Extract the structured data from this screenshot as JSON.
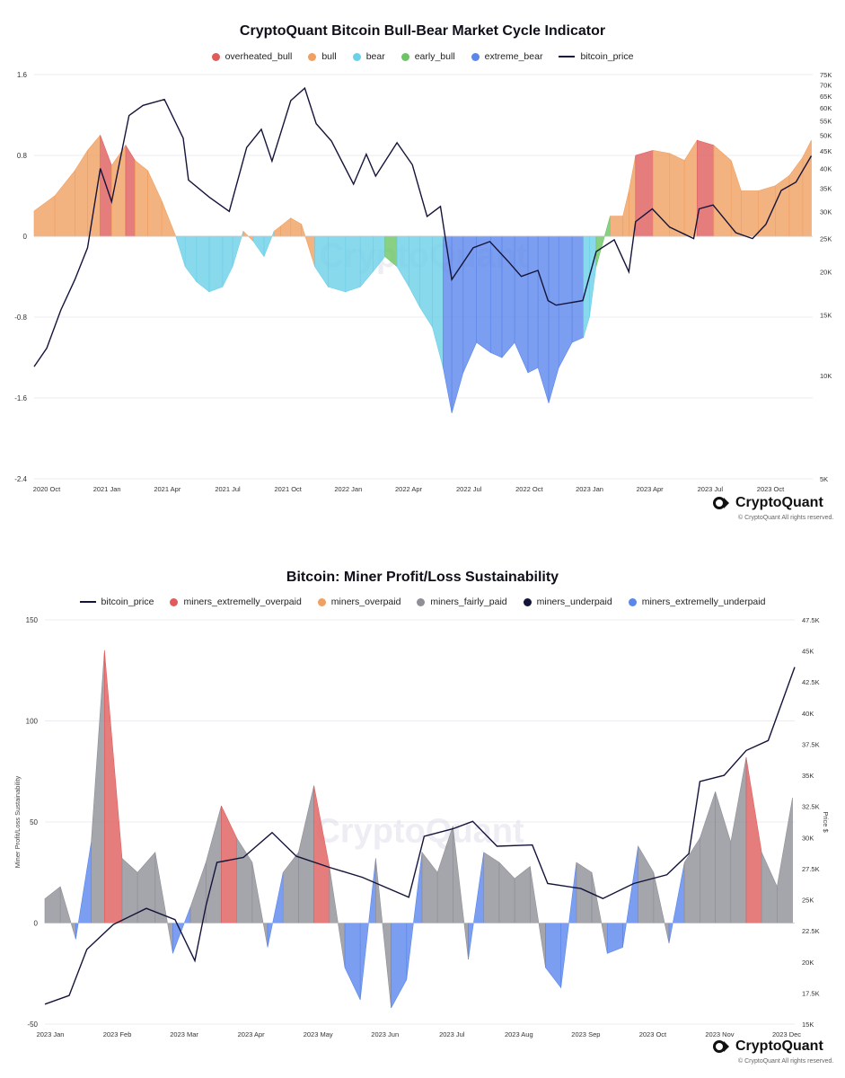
{
  "charts": [
    {
      "title": "CryptoQuant Bitcoin Bull-Bear Market Cycle Indicator",
      "legend": [
        {
          "label": "overheated_bull",
          "color": "#e05c5c",
          "kind": "dot"
        },
        {
          "label": "bull",
          "color": "#f0a060",
          "kind": "dot"
        },
        {
          "label": "bear",
          "color": "#6cd0e8",
          "kind": "dot"
        },
        {
          "label": "early_bull",
          "color": "#6cc464",
          "kind": "dot"
        },
        {
          "label": "extreme_bear",
          "color": "#5b86ec",
          "kind": "dot"
        },
        {
          "label": "bitcoin_price",
          "color": "#14143a",
          "kind": "line"
        }
      ],
      "watermark": "CryptoQuant",
      "brand": "CryptoQuant",
      "copyright": "© CryptoQuant All rights reserved."
    },
    {
      "title": "Bitcoin: Miner Profit/Loss Sustainability",
      "legend": [
        {
          "label": "bitcoin_price",
          "color": "#14143a",
          "kind": "line"
        },
        {
          "label": "miners_extremelly_overpaid",
          "color": "#e05c5c",
          "kind": "dot"
        },
        {
          "label": "miners_overpaid",
          "color": "#f0a060",
          "kind": "dot"
        },
        {
          "label": "miners_fairly_paid",
          "color": "#8f8f97",
          "kind": "dot"
        },
        {
          "label": "miners_underpaid",
          "color": "#14143a",
          "kind": "dot"
        },
        {
          "label": "miners_extremelly_underpaid",
          "color": "#5b86ec",
          "kind": "dot"
        }
      ],
      "watermark": "CryptoQuant",
      "brand": "CryptoQuant",
      "copyright": "© CryptoQuant All rights reserved."
    }
  ],
  "chart_data": [
    {
      "type": "area",
      "title": "CryptoQuant Bitcoin Bull-Bear Market Cycle Indicator",
      "x_tick_labels": [
        "2020 Oct",
        "2021 Jan",
        "2021 Apr",
        "2021 Jul",
        "2021 Oct",
        "2022 Jan",
        "2022 Apr",
        "2022 Jul",
        "2022 Oct",
        "2023 Jan",
        "2023 Apr",
        "2023 Jul",
        "2023 Oct"
      ],
      "x_range": [
        "2020-10-01",
        "2023-12-10"
      ],
      "y_left": {
        "range": [
          -2.4,
          1.6
        ],
        "ticks": [
          1.6,
          0.8,
          0,
          -0.8,
          -1.6,
          -2.4
        ],
        "tick_labels": [
          "1.6",
          "0.8",
          "0",
          "-0.8",
          "-1.6",
          "-2.4"
        ]
      },
      "y_right": {
        "scale": "log",
        "range": [
          5000,
          75000
        ],
        "ticks": [
          75000,
          70000,
          65000,
          60000,
          55000,
          50000,
          45000,
          40000,
          35000,
          30000,
          25000,
          20000,
          15000,
          10000,
          5000
        ],
        "tick_labels": [
          "75K",
          "70K",
          "65K",
          "60K",
          "55K",
          "50K",
          "45K",
          "40K",
          "35K",
          "30K",
          "25K",
          "20K",
          "15K",
          "10K",
          "5K"
        ]
      },
      "indicator": {
        "x": [
          "2020-10-01",
          "2020-11-01",
          "2020-12-01",
          "2020-12-20",
          "2021-01-08",
          "2021-01-25",
          "2021-02-15",
          "2021-03-01",
          "2021-03-20",
          "2021-04-10",
          "2021-05-01",
          "2021-05-15",
          "2021-06-01",
          "2021-06-20",
          "2021-07-10",
          "2021-07-25",
          "2021-08-10",
          "2021-08-25",
          "2021-09-10",
          "2021-09-25",
          "2021-10-05",
          "2021-10-20",
          "2021-11-05",
          "2021-11-25",
          "2021-12-15",
          "2022-01-10",
          "2022-02-01",
          "2022-02-20",
          "2022-03-10",
          "2022-03-28",
          "2022-04-15",
          "2022-05-01",
          "2022-05-20",
          "2022-06-05",
          "2022-06-18",
          "2022-07-05",
          "2022-07-25",
          "2022-08-15",
          "2022-09-01",
          "2022-09-20",
          "2022-10-10",
          "2022-10-25",
          "2022-11-10",
          "2022-11-25",
          "2022-12-15",
          "2023-01-01",
          "2023-01-10",
          "2023-01-20",
          "2023-02-10",
          "2023-03-01",
          "2023-03-10",
          "2023-03-20",
          "2023-04-15",
          "2023-05-10",
          "2023-06-01",
          "2023-06-20",
          "2023-07-15",
          "2023-08-10",
          "2023-08-25",
          "2023-09-20",
          "2023-10-15",
          "2023-11-05",
          "2023-11-25",
          "2023-12-08"
        ],
        "values": [
          0.25,
          0.4,
          0.65,
          0.85,
          1.0,
          0.7,
          0.9,
          0.75,
          0.65,
          0.35,
          0.0,
          -0.3,
          -0.45,
          -0.55,
          -0.5,
          -0.3,
          0.05,
          -0.05,
          -0.2,
          0.05,
          0.1,
          0.18,
          0.12,
          -0.3,
          -0.5,
          -0.55,
          -0.5,
          -0.35,
          -0.2,
          -0.3,
          -0.5,
          -0.7,
          -0.9,
          -1.3,
          -1.75,
          -1.35,
          -1.05,
          -1.15,
          -1.2,
          -1.05,
          -1.35,
          -1.3,
          -1.65,
          -1.3,
          -1.05,
          -1.0,
          -0.8,
          -0.3,
          0.2,
          0.2,
          0.45,
          0.8,
          0.85,
          0.82,
          0.75,
          0.95,
          0.9,
          0.75,
          0.45,
          0.45,
          0.5,
          0.6,
          0.78,
          0.95
        ],
        "regime": [
          "bull",
          "bull",
          "bull",
          "bull",
          "overheated_bull",
          "bull",
          "overheated_bull",
          "bull",
          "bull",
          "bull",
          "bear",
          "bear",
          "bear",
          "bear",
          "bear",
          "bear",
          "bull",
          "bear",
          "bear",
          "bull",
          "bull",
          "bull",
          "bull",
          "bear",
          "bear",
          "bear",
          "bear",
          "bear",
          "early_bull",
          "bear",
          "bear",
          "bear",
          "bear",
          "extreme_bear",
          "extreme_bear",
          "extreme_bear",
          "extreme_bear",
          "extreme_bear",
          "extreme_bear",
          "extreme_bear",
          "extreme_bear",
          "extreme_bear",
          "extreme_bear",
          "extreme_bear",
          "extreme_bear",
          "bear",
          "bear",
          "early_bull",
          "bull",
          "bull",
          "bull",
          "overheated_bull",
          "bull",
          "bull",
          "bull",
          "overheated_bull",
          "bull",
          "bull",
          "bull",
          "bull",
          "bull",
          "bull",
          "bull",
          "overheated_bull"
        ]
      },
      "bitcoin_price": {
        "x": [
          "2020-10-01",
          "2020-10-20",
          "2020-11-10",
          "2020-12-01",
          "2020-12-20",
          "2021-01-08",
          "2021-01-25",
          "2021-02-20",
          "2021-03-13",
          "2021-04-14",
          "2021-05-12",
          "2021-05-20",
          "2021-06-20",
          "2021-07-20",
          "2021-08-15",
          "2021-09-06",
          "2021-09-22",
          "2021-10-20",
          "2021-11-10",
          "2021-11-27",
          "2021-12-20",
          "2022-01-22",
          "2022-02-10",
          "2022-02-24",
          "2022-03-28",
          "2022-04-20",
          "2022-05-12",
          "2022-06-01",
          "2022-06-18",
          "2022-07-20",
          "2022-08-14",
          "2022-09-10",
          "2022-09-30",
          "2022-10-25",
          "2022-11-09",
          "2022-11-21",
          "2022-12-31",
          "2023-01-20",
          "2023-02-16",
          "2023-03-10",
          "2023-03-20",
          "2023-04-14",
          "2023-05-10",
          "2023-06-15",
          "2023-06-23",
          "2023-07-14",
          "2023-08-17",
          "2023-09-11",
          "2023-10-01",
          "2023-10-24",
          "2023-11-15",
          "2023-12-08"
        ],
        "values": [
          10600,
          12000,
          15500,
          19000,
          23500,
          40000,
          32000,
          57000,
          61000,
          63500,
          49000,
          37000,
          33000,
          30000,
          46000,
          52000,
          42000,
          63000,
          68500,
          54000,
          48000,
          36000,
          44000,
          38000,
          47500,
          41000,
          29000,
          31000,
          19000,
          23500,
          24500,
          21500,
          19400,
          20200,
          16500,
          16000,
          16500,
          22900,
          24800,
          20000,
          28000,
          30500,
          27000,
          25000,
          30500,
          31300,
          26000,
          25000,
          27500,
          34500,
          36500,
          43500
        ]
      }
    },
    {
      "type": "area",
      "title": "Bitcoin: Miner Profit/Loss Sustainability",
      "x_tick_labels": [
        "2023 Jan",
        "2023 Feb",
        "2023 Mar",
        "2023 Apr",
        "2023 May",
        "2023 Jun",
        "2023 Jul",
        "2023 Aug",
        "2023 Sep",
        "2023 Oct",
        "2023 Nov",
        "2023 Dec"
      ],
      "x_range": [
        "2023-01-01",
        "2023-12-07"
      ],
      "y_left": {
        "label": "Miner Profit/Loss Sustainability",
        "range": [
          -50,
          150
        ],
        "ticks": [
          150,
          100,
          50,
          0,
          -50
        ],
        "tick_labels": [
          "150",
          "100",
          "50",
          "0",
          "-50"
        ]
      },
      "y_right": {
        "label": "Price $",
        "range": [
          15000,
          47500
        ],
        "ticks": [
          47500,
          45000,
          42500,
          40000,
          37500,
          35000,
          32500,
          30000,
          27500,
          25000,
          22500,
          20000,
          17500,
          15000
        ],
        "tick_labels": [
          "47.5K",
          "45K",
          "42.5K",
          "40K",
          "37.5K",
          "35K",
          "32.5K",
          "30K",
          "27.5K",
          "25K",
          "22.5K",
          "20K",
          "17.5K",
          "15K"
        ]
      },
      "sustainability": {
        "x": [
          "2023-01-01",
          "2023-01-08",
          "2023-01-15",
          "2023-01-22",
          "2023-01-28",
          "2023-02-05",
          "2023-02-12",
          "2023-02-20",
          "2023-02-28",
          "2023-03-08",
          "2023-03-15",
          "2023-03-22",
          "2023-03-29",
          "2023-04-05",
          "2023-04-12",
          "2023-04-19",
          "2023-04-26",
          "2023-05-03",
          "2023-05-10",
          "2023-05-17",
          "2023-05-24",
          "2023-05-31",
          "2023-06-07",
          "2023-06-14",
          "2023-06-21",
          "2023-06-28",
          "2023-07-05",
          "2023-07-12",
          "2023-07-19",
          "2023-07-26",
          "2023-08-02",
          "2023-08-09",
          "2023-08-16",
          "2023-08-23",
          "2023-08-30",
          "2023-09-06",
          "2023-09-13",
          "2023-09-20",
          "2023-09-27",
          "2023-10-04",
          "2023-10-11",
          "2023-10-18",
          "2023-10-25",
          "2023-11-01",
          "2023-11-08",
          "2023-11-15",
          "2023-11-22",
          "2023-11-29",
          "2023-12-06"
        ],
        "values": [
          12,
          18,
          -8,
          40,
          135,
          32,
          25,
          35,
          -15,
          8,
          30,
          58,
          42,
          30,
          -12,
          25,
          35,
          68,
          28,
          -22,
          -38,
          32,
          -42,
          -28,
          35,
          25,
          48,
          -18,
          35,
          30,
          22,
          28,
          -22,
          -32,
          30,
          25,
          -15,
          -12,
          38,
          25,
          -10,
          30,
          42,
          65,
          40,
          82,
          35,
          18,
          62
        ],
        "regime": [
          "miners_fairly_paid",
          "miners_fairly_paid",
          "miners_extremelly_underpaid",
          "miners_fairly_paid",
          "miners_extremelly_overpaid",
          "miners_fairly_paid",
          "miners_fairly_paid",
          "miners_fairly_paid",
          "miners_extremelly_underpaid",
          "miners_fairly_paid",
          "miners_fairly_paid",
          "miners_extremelly_overpaid",
          "miners_fairly_paid",
          "miners_fairly_paid",
          "miners_extremelly_underpaid",
          "miners_fairly_paid",
          "miners_fairly_paid",
          "miners_extremelly_overpaid",
          "miners_fairly_paid",
          "miners_extremelly_underpaid",
          "miners_extremelly_underpaid",
          "miners_fairly_paid",
          "miners_extremelly_underpaid",
          "miners_extremelly_underpaid",
          "miners_fairly_paid",
          "miners_fairly_paid",
          "miners_fairly_paid",
          "miners_extremelly_underpaid",
          "miners_fairly_paid",
          "miners_fairly_paid",
          "miners_fairly_paid",
          "miners_fairly_paid",
          "miners_extremelly_underpaid",
          "miners_extremelly_underpaid",
          "miners_fairly_paid",
          "miners_fairly_paid",
          "miners_extremelly_underpaid",
          "miners_extremelly_underpaid",
          "miners_fairly_paid",
          "miners_fairly_paid",
          "miners_extremelly_underpaid",
          "miners_fairly_paid",
          "miners_fairly_paid",
          "miners_fairly_paid",
          "miners_fairly_paid",
          "miners_extremelly_overpaid",
          "miners_fairly_paid",
          "miners_fairly_paid",
          "miners_extremelly_overpaid"
        ]
      },
      "bitcoin_price": {
        "x": [
          "2023-01-01",
          "2023-01-12",
          "2023-01-20",
          "2023-02-01",
          "2023-02-16",
          "2023-03-01",
          "2023-03-10",
          "2023-03-15",
          "2023-03-20",
          "2023-04-01",
          "2023-04-14",
          "2023-04-25",
          "2023-05-10",
          "2023-05-25",
          "2023-06-15",
          "2023-06-22",
          "2023-07-05",
          "2023-07-14",
          "2023-07-25",
          "2023-08-10",
          "2023-08-17",
          "2023-09-01",
          "2023-09-11",
          "2023-09-25",
          "2023-10-10",
          "2023-10-20",
          "2023-10-25",
          "2023-11-05",
          "2023-11-15",
          "2023-11-25",
          "2023-12-07"
        ],
        "values": [
          16600,
          17300,
          21000,
          23000,
          24300,
          23400,
          20100,
          24500,
          28000,
          28400,
          30400,
          28500,
          27600,
          26800,
          25200,
          30100,
          30700,
          31300,
          29300,
          29400,
          26300,
          25900,
          25100,
          26300,
          27000,
          28700,
          34500,
          35000,
          37000,
          37800,
          43700
        ]
      }
    }
  ]
}
